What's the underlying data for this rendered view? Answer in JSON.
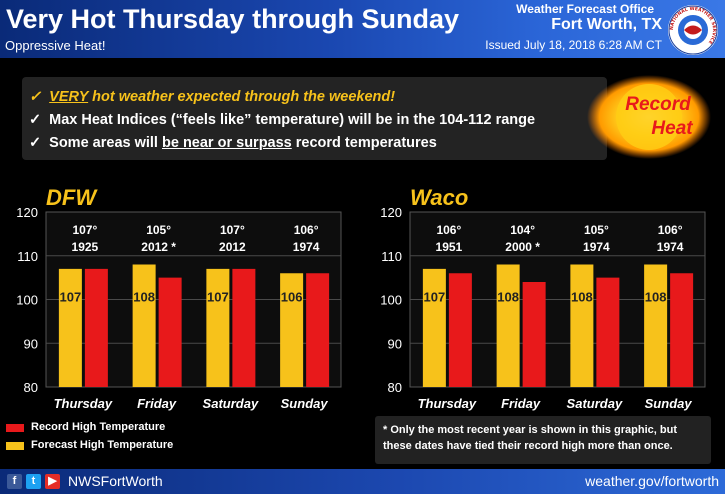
{
  "header": {
    "title": "Very Hot Thursday through Sunday",
    "subtitle": "Oppressive Heat!",
    "office": "Weather Forecast Office",
    "city": "Fort Worth, TX",
    "issued": "Issued July 18, 2018 6:28 AM CT",
    "logo_text": "NATIONAL WEATHER SERVICE"
  },
  "bullets": {
    "check": "✓",
    "b1_emph": "VERY",
    "b1_rest": " hot weather expected through the weekend!",
    "b2": "Max Heat Indices (“feels like” temperature) will be in the 104-112 range",
    "b3_pre": "Some areas will ",
    "b3_u": "be near or surpass",
    "b3_post": " record temperatures"
  },
  "badge": {
    "line1": "Record",
    "line2": "Heat"
  },
  "colors": {
    "forecast": "#f7c21b",
    "record": "#e8191b",
    "title_yellow": "#f7c21b"
  },
  "chart_data": [
    {
      "type": "bar",
      "title": "DFW",
      "categories": [
        "Thursday",
        "Friday",
        "Saturday",
        "Sunday"
      ],
      "series": [
        {
          "name": "Forecast High Temperature",
          "values": [
            107,
            108,
            107,
            106
          ]
        },
        {
          "name": "Record High Temperature",
          "values": [
            107,
            105,
            107,
            106
          ]
        }
      ],
      "record_labels": [
        "107°",
        "105°",
        "107°",
        "106°"
      ],
      "record_years": [
        "1925",
        "2012 *",
        "2012",
        "1974"
      ],
      "forecast_labels": [
        "107",
        "108",
        "107",
        "106"
      ],
      "ylim": [
        80,
        120
      ],
      "yticks": [
        "80",
        "90",
        "100",
        "110",
        "120"
      ],
      "ytick_values": [
        80,
        90,
        100,
        110,
        120
      ],
      "grid": true
    },
    {
      "type": "bar",
      "title": "Waco",
      "categories": [
        "Thursday",
        "Friday",
        "Saturday",
        "Sunday"
      ],
      "series": [
        {
          "name": "Forecast High Temperature",
          "values": [
            107,
            108,
            108,
            108
          ]
        },
        {
          "name": "Record High Temperature",
          "values": [
            106,
            104,
            105,
            106
          ]
        }
      ],
      "record_labels": [
        "106°",
        "104°",
        "105°",
        "106°"
      ],
      "record_years": [
        "1951",
        "2000 *",
        "1974",
        "1974"
      ],
      "forecast_labels": [
        "107",
        "108",
        "108",
        "108"
      ],
      "ylim": [
        80,
        120
      ],
      "yticks": [
        "80",
        "90",
        "100",
        "110",
        "120"
      ],
      "ytick_values": [
        80,
        90,
        100,
        110,
        120
      ],
      "grid": true
    }
  ],
  "legend": {
    "record": "Record High Temperature",
    "forecast": "Forecast High Temperature"
  },
  "footnote": "* Only the most recent year is shown in this graphic, but these dates have tied their record high more than once.",
  "footer": {
    "fb": "f",
    "tw": "t",
    "yt": "▶",
    "handle": "NWSFortWorth",
    "site": "weather.gov/fortworth"
  }
}
